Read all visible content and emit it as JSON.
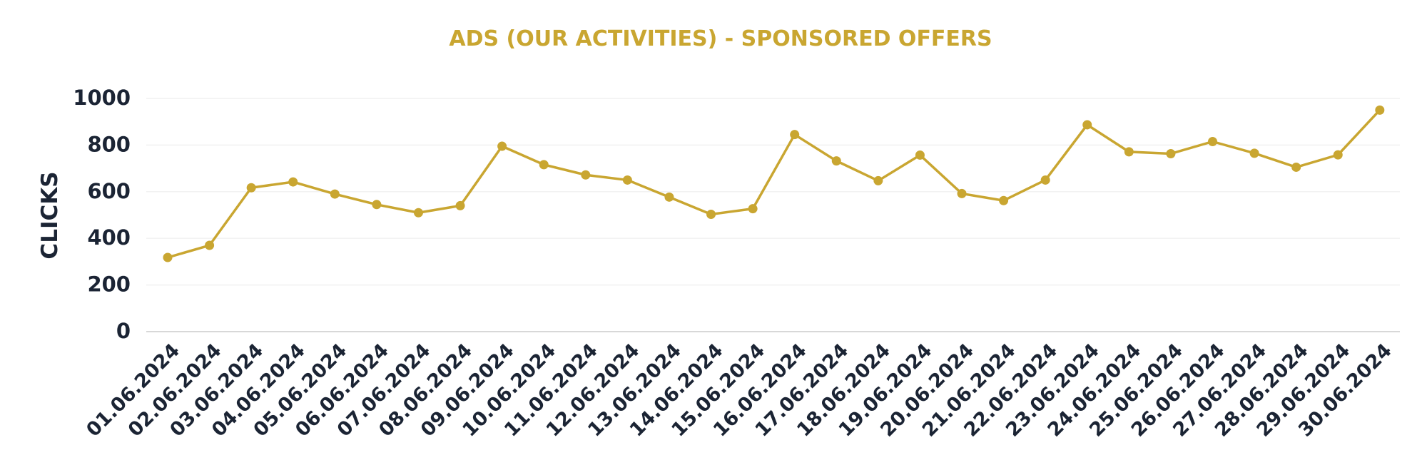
{
  "colors": {
    "accent": "#c9a631",
    "text": "#1b2434",
    "grid": "#eeeeee",
    "axis": "#cccccc",
    "background": "#ffffff"
  },
  "chart_data": {
    "type": "line",
    "title": "ADS (OUR ACTIVITIES) - SPONSORED OFFERS",
    "xlabel": "",
    "ylabel": "CLICKS",
    "ylim": [
      0,
      1000
    ],
    "yticks": [
      0,
      200,
      400,
      600,
      800,
      1000
    ],
    "grid": true,
    "legend": "none",
    "categories": [
      "01.06.2024",
      "02.06.2024",
      "03.06.2024",
      "04.06.2024",
      "05.06.2024",
      "06.06.2024",
      "07.06.2024",
      "08.06.2024",
      "09.06.2024",
      "10.06.2024",
      "11.06.2024",
      "12.06.2024",
      "13.06.2024",
      "14.06.2024",
      "15.06.2024",
      "16.06.2024",
      "17.06.2024",
      "18.06.2024",
      "19.06.2024",
      "20.06.2024",
      "21.06.2024",
      "22.06.2024",
      "23.06.2024",
      "24.06.2024",
      "25.06.2024",
      "26.06.2024",
      "27.06.2024",
      "28.06.2024",
      "29.06.2024",
      "30.06.2024"
    ],
    "series": [
      {
        "values": [
          318,
          370,
          617,
          642,
          590,
          545,
          510,
          540,
          795,
          716,
          672,
          650,
          577,
          503,
          527,
          845,
          732,
          647,
          757,
          592,
          562,
          650,
          887,
          771,
          763,
          815,
          765,
          705,
          758,
          950
        ]
      }
    ]
  }
}
